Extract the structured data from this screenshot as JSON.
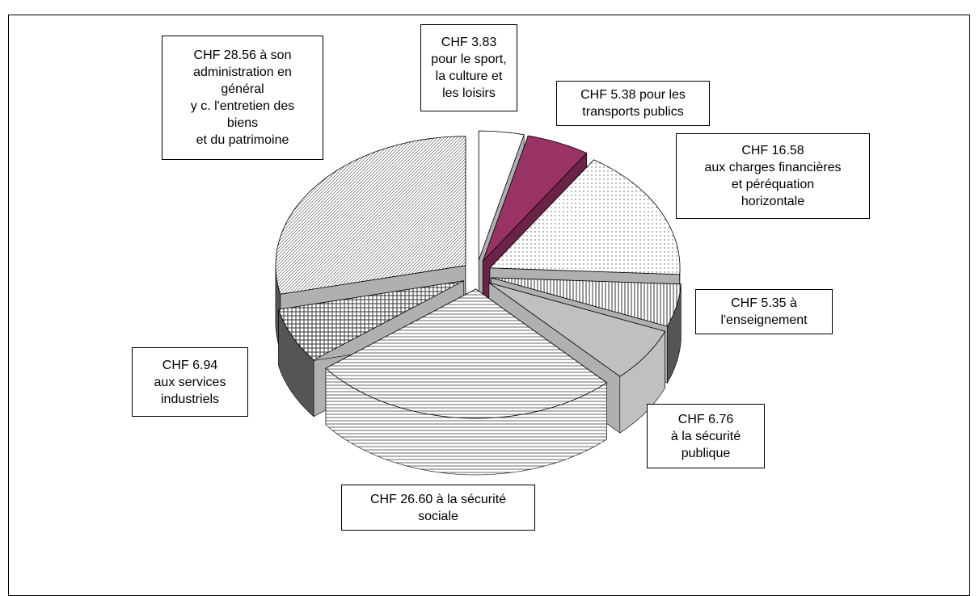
{
  "chart_data": {
    "type": "pie3d",
    "values": [
      3.83,
      5.38,
      16.58,
      5.35,
      6.76,
      26.6,
      6.94,
      28.56
    ],
    "value_labels": [
      [
        "CHF 3.83",
        "pour le sport,",
        "la culture et",
        "les loisirs"
      ],
      [
        "CHF 5.38 pour les",
        "transports publics"
      ],
      [
        "CHF 16.58",
        "aux charges financières",
        "et péréquation",
        "horizontale"
      ],
      [
        "CHF 5.35 à",
        "l'enseignement"
      ],
      [
        "CHF 6.76",
        "à la sécurité",
        "publique"
      ],
      [
        "CHF 26.60 à la sécurité",
        "sociale"
      ],
      [
        "CHF 6.94",
        "aux services",
        "industriels"
      ],
      [
        "CHF 28.56 à son",
        "administration en",
        "général",
        "y c. l'entretien des",
        "biens",
        "et du patrimoine"
      ]
    ],
    "colors": [
      "#ffffff",
      "#993366",
      "#ffffff",
      "#ffffff",
      "#c0c0c0",
      "#ffffff",
      "#ffffff",
      "#ffffff"
    ],
    "patterns": [
      "none",
      "none",
      "dots",
      "vertical",
      "none",
      "horizontal",
      "grid",
      "diagonal"
    ]
  }
}
